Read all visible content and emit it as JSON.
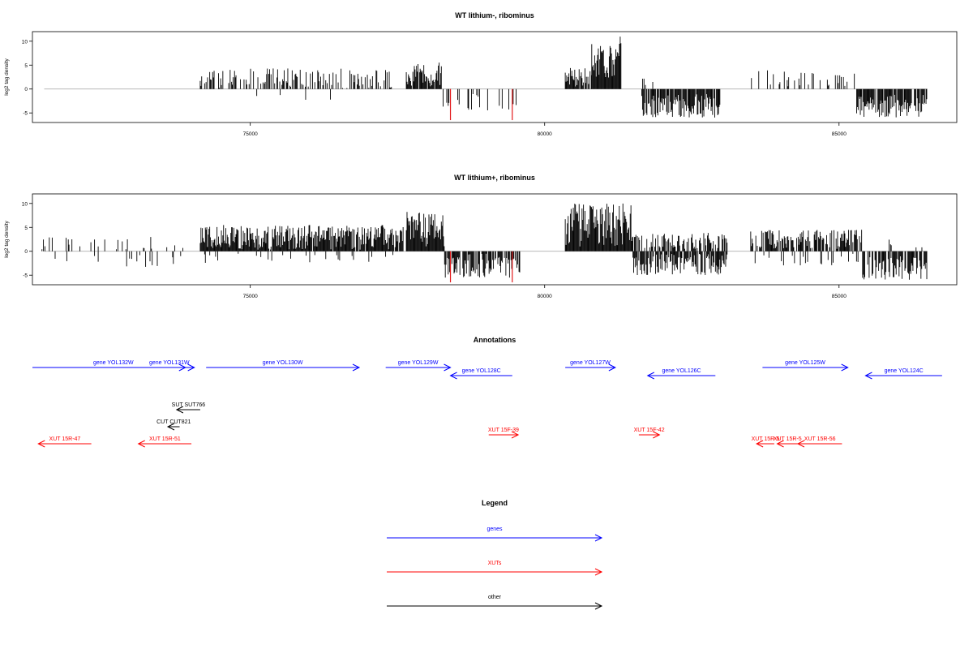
{
  "chart_data": [
    {
      "type": "bar",
      "title": "WT lithium-, ribominus",
      "ylabel": "log2 tag density",
      "xlabel": "",
      "xlim": [
        71300,
        87000
      ],
      "ylim": [
        -7,
        12
      ],
      "xticks": [
        75000,
        80000,
        85000
      ],
      "xtick_labels": [
        "75000",
        "80000",
        "85000"
      ],
      "yticks": [
        -5,
        0,
        5,
        10
      ],
      "ytick_labels": [
        "-5",
        "0",
        "5",
        "10"
      ],
      "colors": {
        "bars": "#000000",
        "highlight": "#e31a1c",
        "baseline": "#a0a0a0"
      },
      "highlight_bars": [
        {
          "x": 78400,
          "y": -6.5
        },
        {
          "x": 79450,
          "y": -6.5
        }
      ],
      "segments": [
        {
          "from": 71450,
          "to": 71950,
          "density": 0.01,
          "min": -2.8,
          "max": 1.2,
          "seed": 11
        },
        {
          "from": 74150,
          "to": 77400,
          "density": 0.14,
          "min": 0.2,
          "max": 4.3,
          "seed": 12
        },
        {
          "from": 74800,
          "to": 77100,
          "density": 0.008,
          "min": -3,
          "max": -1,
          "seed": 13
        },
        {
          "from": 77650,
          "to": 78250,
          "density": 0.28,
          "min": 0.5,
          "max": 6,
          "seed": 14
        },
        {
          "from": 78250,
          "to": 79600,
          "density": 0.06,
          "min": -4.5,
          "max": -0.8,
          "seed": 15
        },
        {
          "from": 80350,
          "to": 80800,
          "density": 0.3,
          "min": 0.5,
          "max": 4.5,
          "seed": 16
        },
        {
          "from": 80800,
          "to": 81300,
          "density": 0.6,
          "min": 2,
          "max": 11,
          "seed": 17
        },
        {
          "from": 81650,
          "to": 83000,
          "density": 0.3,
          "min": -6,
          "max": -1,
          "seed": 18
        },
        {
          "from": 81650,
          "to": 81900,
          "density": 0.02,
          "min": 0.5,
          "max": 2.5,
          "seed": 19
        },
        {
          "from": 83500,
          "to": 85300,
          "density": 0.08,
          "min": 0.5,
          "max": 4,
          "seed": 20
        },
        {
          "from": 85300,
          "to": 86500,
          "density": 0.28,
          "min": -6,
          "max": -1,
          "seed": 21
        }
      ]
    },
    {
      "type": "bar",
      "title": "WT lithium+, ribominus",
      "ylabel": "log2 tag density",
      "xlabel": "",
      "xlim": [
        71300,
        87000
      ],
      "ylim": [
        -7,
        12
      ],
      "xticks": [
        75000,
        80000,
        85000
      ],
      "xtick_labels": [
        "75000",
        "80000",
        "85000"
      ],
      "yticks": [
        -5,
        0,
        5,
        10
      ],
      "ytick_labels": [
        "-5",
        "0",
        "5",
        "10"
      ],
      "colors": {
        "bars": "#000000",
        "highlight": "#e31a1c",
        "baseline": "#a0a0a0"
      },
      "highlight_bars": [
        {
          "x": 78400,
          "y": -6.5
        },
        {
          "x": 79450,
          "y": -6.5
        }
      ],
      "segments": [
        {
          "from": 71450,
          "to": 73900,
          "density": 0.05,
          "min": 0.3,
          "max": 3,
          "seed": 31
        },
        {
          "from": 71450,
          "to": 73900,
          "density": 0.03,
          "min": -3.5,
          "max": -0.5,
          "seed": 32
        },
        {
          "from": 74150,
          "to": 77600,
          "density": 0.32,
          "min": 0.3,
          "max": 5.5,
          "seed": 33
        },
        {
          "from": 74200,
          "to": 77500,
          "density": 0.04,
          "min": -2.5,
          "max": -0.5,
          "seed": 34
        },
        {
          "from": 77650,
          "to": 78300,
          "density": 0.4,
          "min": 1,
          "max": 8.5,
          "seed": 35
        },
        {
          "from": 78300,
          "to": 79600,
          "density": 0.22,
          "min": -5.5,
          "max": -0.5,
          "seed": 36
        },
        {
          "from": 80350,
          "to": 81500,
          "density": 0.6,
          "min": 1,
          "max": 10,
          "seed": 37
        },
        {
          "from": 81500,
          "to": 83100,
          "density": 0.2,
          "min": 0.5,
          "max": 4,
          "seed": 38
        },
        {
          "from": 81500,
          "to": 83100,
          "density": 0.25,
          "min": -5,
          "max": -0.5,
          "seed": 39
        },
        {
          "from": 83500,
          "to": 85400,
          "density": 0.25,
          "min": 0.5,
          "max": 4.5,
          "seed": 40
        },
        {
          "from": 83500,
          "to": 85400,
          "density": 0.05,
          "min": -3,
          "max": -0.5,
          "seed": 41
        },
        {
          "from": 85400,
          "to": 86500,
          "density": 0.25,
          "min": -6,
          "max": -1,
          "seed": 42
        },
        {
          "from": 85800,
          "to": 86500,
          "density": 0.02,
          "min": 0.5,
          "max": 3,
          "seed": 43
        }
      ]
    }
  ],
  "annotations": {
    "title": "Annotations",
    "colors": {
      "gene": "#0000ff",
      "XUT": "#ff0000",
      "other": "#000000"
    },
    "features": [
      {
        "label": "gene YOL132W",
        "kind": "gene",
        "strand": "+",
        "row": 0,
        "from": 71300,
        "to": 74050
      },
      {
        "label": "gene YOL131W",
        "kind": "gene",
        "strand": "+",
        "row": 0,
        "from": 73350,
        "to": 73900
      },
      {
        "label": "gene YOL130W",
        "kind": "gene",
        "strand": "+",
        "row": 0,
        "from": 74250,
        "to": 76850
      },
      {
        "label": "gene YOL129W",
        "kind": "gene",
        "strand": "+",
        "row": 0,
        "from": 77300,
        "to": 78400
      },
      {
        "label": "gene YOL128C",
        "kind": "gene",
        "strand": "-",
        "row": 1,
        "from": 78400,
        "to": 79450
      },
      {
        "label": "gene YOL127W",
        "kind": "gene",
        "strand": "+",
        "row": 0,
        "from": 80350,
        "to": 81200
      },
      {
        "label": "gene YOL126C",
        "kind": "gene",
        "strand": "-",
        "row": 1,
        "from": 81750,
        "to": 82900
      },
      {
        "label": "gene YOL125W",
        "kind": "gene",
        "strand": "+",
        "row": 0,
        "from": 83700,
        "to": 85150
      },
      {
        "label": "gene YOL124C",
        "kind": "gene",
        "strand": "-",
        "row": 1,
        "from": 85450,
        "to": 86750
      },
      {
        "label": "SUT SUT766",
        "kind": "other",
        "strand": "-",
        "row": 2,
        "from": 73750,
        "to": 74150
      },
      {
        "label": "CUT CUT821",
        "kind": "other",
        "strand": "-",
        "row": 3,
        "from": 73600,
        "to": 73800
      },
      {
        "label": "XUT 15R-47",
        "kind": "XUT",
        "strand": "-",
        "row": 4,
        "from": 71400,
        "to": 72300
      },
      {
        "label": "XUT 15R-51",
        "kind": "XUT",
        "strand": "-",
        "row": 4,
        "from": 73100,
        "to": 74000
      },
      {
        "label": "XUT 15F-39",
        "kind": "XUT",
        "strand": "+",
        "row": 5,
        "from": 79050,
        "to": 79550
      },
      {
        "label": "XUT 15F-42",
        "kind": "XUT",
        "strand": "+",
        "row": 5,
        "from": 81600,
        "to": 81950
      },
      {
        "label": "XUT 15R-5",
        "kind": "XUT",
        "strand": "-",
        "row": 4,
        "from": 83600,
        "to": 83900
      },
      {
        "label": "XUT 15R-5",
        "kind": "XUT",
        "strand": "-",
        "row": 4,
        "from": 83950,
        "to": 84300
      },
      {
        "label": "XUT 15R-56",
        "kind": "XUT",
        "strand": "-",
        "row": 4,
        "from": 84300,
        "to": 85050
      }
    ]
  },
  "legend": {
    "title": "Legend",
    "items": [
      {
        "label": "genes",
        "kind": "gene"
      },
      {
        "label": "XUTs",
        "kind": "XUT"
      },
      {
        "label": "other",
        "kind": "other"
      }
    ]
  }
}
